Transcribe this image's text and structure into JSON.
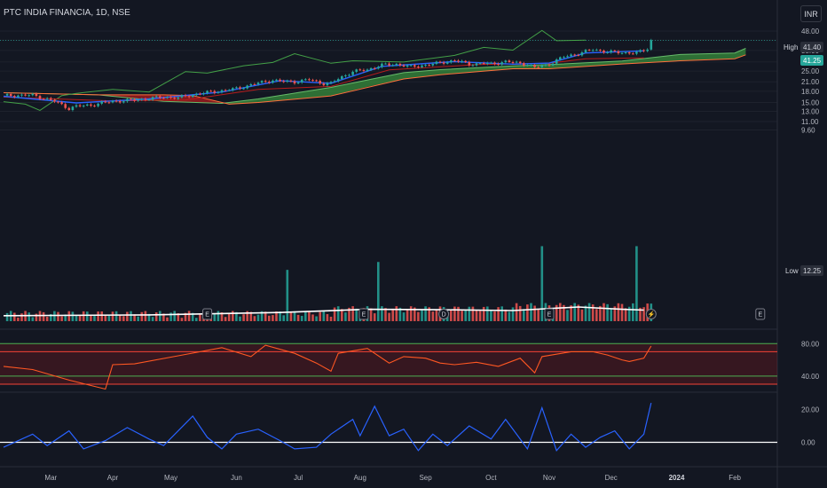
{
  "header": {
    "title": "PTC INDIA FINANCIA, 1D, NSE",
    "currency": "INR"
  },
  "colors": {
    "background": "#131722",
    "up": "#26a69a",
    "down": "#ef5350",
    "cloud_up": "#388e3c",
    "cloud_down": "#b71c1c",
    "conversion": "#2962ff",
    "base": "#b71c1c",
    "lagging": "#43a047",
    "rsi": "#ff5722",
    "osc": "#2962ff"
  },
  "price_tags": {
    "high_label": "High",
    "high_value": "41.40",
    "current_value": "41.25",
    "low_label": "Low",
    "low_value": "12.25"
  },
  "events": {
    "earnings": "E",
    "dividend": "D",
    "split": "⚡"
  },
  "chart_data": [
    {
      "type": "candlestick",
      "scale": "log",
      "y_ticks": [
        "48.00",
        "41.40",
        "35.00",
        "29.00",
        "25.00",
        "21.00",
        "18.00",
        "15.00",
        "13.00",
        "11.00",
        "9.60"
      ],
      "x_ticks": [
        "Mar",
        "Apr",
        "May",
        "Jun",
        "Jul",
        "Aug",
        "Sep",
        "Oct",
        "Nov",
        "Dec",
        "2024",
        "Feb"
      ],
      "bold_tick": "2024",
      "close_path": [
        [
          0,
          16.8
        ],
        [
          8,
          16.9
        ],
        [
          14,
          15.3
        ],
        [
          18,
          13.6
        ],
        [
          20,
          14.1
        ],
        [
          24,
          14.4
        ],
        [
          30,
          15.3
        ],
        [
          36,
          15.6
        ],
        [
          44,
          16.4
        ],
        [
          48,
          16.2
        ],
        [
          54,
          17.4
        ],
        [
          60,
          18.2
        ],
        [
          64,
          18.8
        ],
        [
          70,
          20.6
        ],
        [
          74,
          21.6
        ],
        [
          76,
          21.2
        ],
        [
          80,
          21.0
        ],
        [
          84,
          21.8
        ],
        [
          88,
          20.4
        ],
        [
          90,
          20.5
        ],
        [
          92,
          22.1
        ],
        [
          96,
          24.8
        ],
        [
          100,
          25.6
        ],
        [
          104,
          27.6
        ],
        [
          108,
          28.0
        ],
        [
          112,
          26.8
        ],
        [
          116,
          27.6
        ],
        [
          120,
          28.6
        ],
        [
          124,
          29.8
        ],
        [
          128,
          28.0
        ],
        [
          132,
          28.4
        ],
        [
          134,
          28.1
        ],
        [
          138,
          29.2
        ],
        [
          144,
          28.0
        ],
        [
          146,
          26.4
        ],
        [
          150,
          28.0
        ],
        [
          154,
          31.6
        ],
        [
          158,
          33.2
        ],
        [
          162,
          35.6
        ],
        [
          166,
          34.2
        ],
        [
          170,
          33.8
        ],
        [
          174,
          33.6
        ],
        [
          176,
          35.0
        ],
        [
          177,
          36.2
        ],
        [
          178,
          41.25
        ]
      ],
      "ichimoku_conversion": [
        [
          0,
          16.6
        ],
        [
          20,
          14.9
        ],
        [
          40,
          15.9
        ],
        [
          60,
          17.8
        ],
        [
          76,
          21.4
        ],
        [
          90,
          20.5
        ],
        [
          104,
          27.0
        ],
        [
          124,
          29.2
        ],
        [
          140,
          28.0
        ],
        [
          150,
          28.5
        ],
        [
          160,
          33.6
        ],
        [
          176,
          34.8
        ]
      ],
      "ichimoku_base": [
        [
          0,
          16.4
        ],
        [
          30,
          15.4
        ],
        [
          50,
          15.6
        ],
        [
          70,
          18.6
        ],
        [
          90,
          19.5
        ],
        [
          106,
          25.5
        ],
        [
          130,
          27.8
        ],
        [
          150,
          28.4
        ],
        [
          160,
          30.6
        ],
        [
          176,
          31.0
        ]
      ],
      "ichimoku_span_a": [
        [
          0,
          17.6
        ],
        [
          26,
          17.0
        ],
        [
          44,
          15.3
        ],
        [
          60,
          14.8
        ],
        [
          70,
          15.9
        ],
        [
          90,
          19.2
        ],
        [
          110,
          24.4
        ],
        [
          120,
          25.6
        ],
        [
          140,
          27.2
        ],
        [
          150,
          27.8
        ],
        [
          170,
          29.5
        ],
        [
          186,
          32.8
        ],
        [
          201,
          33.6
        ],
        [
          204,
          36.2
        ]
      ],
      "ichimoku_span_b": [
        [
          0,
          17.6
        ],
        [
          26,
          17.0
        ],
        [
          44,
          17.0
        ],
        [
          52,
          16.8
        ],
        [
          62,
          14.6
        ],
        [
          70,
          15.0
        ],
        [
          90,
          16.7
        ],
        [
          110,
          22.0
        ],
        [
          120,
          23.6
        ],
        [
          140,
          26.0
        ],
        [
          150,
          26.0
        ],
        [
          170,
          28.1
        ],
        [
          186,
          29.6
        ],
        [
          201,
          30.6
        ],
        [
          204,
          32.6
        ]
      ],
      "ichimoku_lagging": [
        [
          0,
          15.2
        ],
        [
          6,
          14.6
        ],
        [
          10,
          13.2
        ],
        [
          16,
          16.8
        ],
        [
          20,
          17.4
        ],
        [
          30,
          18.6
        ],
        [
          40,
          17.8
        ],
        [
          50,
          24.8
        ],
        [
          56,
          24.2
        ],
        [
          66,
          27.3
        ],
        [
          74,
          28.8
        ],
        [
          80,
          33.2
        ],
        [
          90,
          28.4
        ],
        [
          96,
          29.6
        ],
        [
          110,
          29.0
        ],
        [
          124,
          32.3
        ],
        [
          132,
          36.8
        ],
        [
          140,
          35.2
        ],
        [
          148,
          48.5
        ],
        [
          152,
          41.0
        ],
        [
          160,
          41.4
        ]
      ],
      "volume_spikes": [
        [
          78,
          13.0
        ],
        [
          103,
          15.0
        ],
        [
          148,
          19.0
        ],
        [
          174,
          19.0
        ]
      ],
      "volume_ma": [
        [
          0,
          1.4
        ],
        [
          40,
          1.6
        ],
        [
          76,
          2.2
        ],
        [
          100,
          3.0
        ],
        [
          120,
          2.9
        ],
        [
          140,
          2.7
        ],
        [
          158,
          3.6
        ],
        [
          170,
          3.0
        ],
        [
          176,
          2.8
        ]
      ]
    },
    {
      "type": "line",
      "name": "RSI",
      "y_ticks": [
        "80.00",
        "40.00"
      ],
      "bands": [
        80,
        70,
        40,
        30
      ],
      "values": [
        [
          0,
          52
        ],
        [
          8,
          48
        ],
        [
          18,
          35
        ],
        [
          28,
          24
        ],
        [
          30,
          54
        ],
        [
          36,
          55
        ],
        [
          48,
          65
        ],
        [
          60,
          75
        ],
        [
          68,
          64
        ],
        [
          72,
          78
        ],
        [
          80,
          68
        ],
        [
          86,
          56
        ],
        [
          90,
          46
        ],
        [
          92,
          68
        ],
        [
          100,
          74
        ],
        [
          106,
          56
        ],
        [
          110,
          64
        ],
        [
          116,
          62
        ],
        [
          120,
          56
        ],
        [
          124,
          54
        ],
        [
          130,
          57
        ],
        [
          136,
          52
        ],
        [
          142,
          62
        ],
        [
          146,
          44
        ],
        [
          148,
          64
        ],
        [
          156,
          70
        ],
        [
          162,
          70
        ],
        [
          166,
          66
        ],
        [
          170,
          60
        ],
        [
          172,
          58
        ],
        [
          176,
          62
        ],
        [
          178,
          77
        ]
      ]
    },
    {
      "type": "line",
      "name": "Oscillator",
      "y_ticks": [
        "20.00",
        "0.00"
      ],
      "values": [
        [
          0,
          -3
        ],
        [
          8,
          5
        ],
        [
          12,
          -2
        ],
        [
          18,
          7
        ],
        [
          22,
          -4
        ],
        [
          28,
          1
        ],
        [
          34,
          9
        ],
        [
          40,
          2
        ],
        [
          44,
          -2
        ],
        [
          52,
          16
        ],
        [
          56,
          3
        ],
        [
          60,
          -4
        ],
        [
          64,
          5
        ],
        [
          70,
          8
        ],
        [
          76,
          1
        ],
        [
          80,
          -4
        ],
        [
          86,
          -3
        ],
        [
          90,
          5
        ],
        [
          96,
          14
        ],
        [
          98,
          4
        ],
        [
          102,
          22
        ],
        [
          106,
          4
        ],
        [
          110,
          8
        ],
        [
          114,
          -5
        ],
        [
          118,
          5
        ],
        [
          122,
          -2
        ],
        [
          128,
          10
        ],
        [
          134,
          2
        ],
        [
          138,
          14
        ],
        [
          144,
          -4
        ],
        [
          148,
          21
        ],
        [
          152,
          -5
        ],
        [
          156,
          5
        ],
        [
          160,
          -3
        ],
        [
          164,
          3
        ],
        [
          168,
          7
        ],
        [
          172,
          -4
        ],
        [
          176,
          5
        ],
        [
          178,
          24
        ]
      ]
    }
  ]
}
